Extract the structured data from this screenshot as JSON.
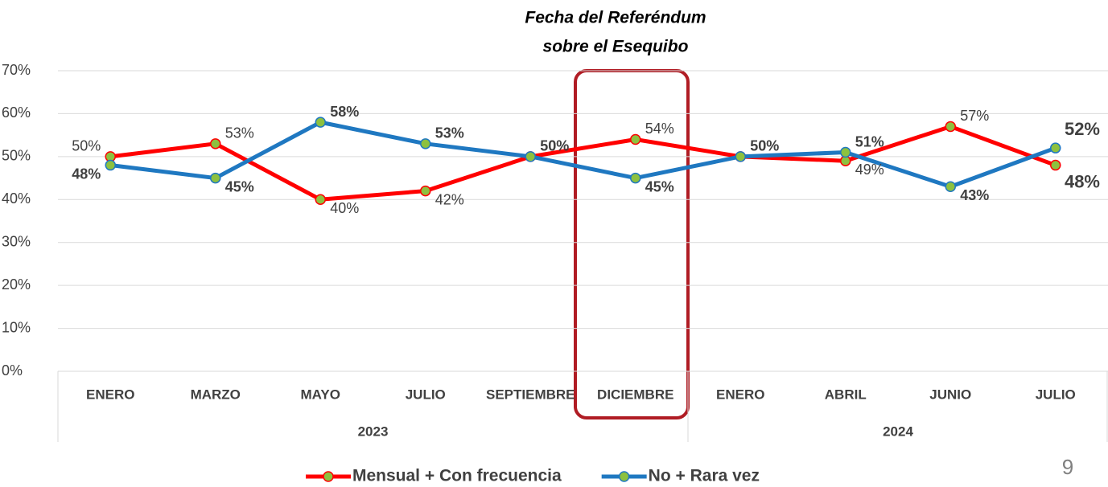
{
  "chart_data": {
    "type": "line",
    "annotation": [
      "Fecha del Referéndum",
      "sobre el Esequibo"
    ],
    "categories": [
      "ENERO",
      "MARZO",
      "MAYO",
      "JULIO",
      "SEPTIEMBRE",
      "DICIEMBRE",
      "ENERO",
      "ABRIL",
      "JUNIO",
      "JULIO"
    ],
    "groups": [
      {
        "name": "2023",
        "span": 6
      },
      {
        "name": "2024",
        "span": 4
      }
    ],
    "series": [
      {
        "name": "Mensual + Con frecuencia",
        "color": "#ff0000",
        "values": [
          50,
          53,
          40,
          42,
          50,
          54,
          50,
          49,
          57,
          48
        ],
        "value_labels": [
          "50%",
          "53%",
          "40%",
          "42%",
          "50%",
          "54%",
          "50%",
          "49%",
          "57%",
          "48%"
        ]
      },
      {
        "name": "No + Rara vez",
        "color": "#1f78c1",
        "values": [
          48,
          45,
          58,
          53,
          50,
          45,
          50,
          51,
          43,
          52
        ],
        "value_labels": [
          "48%",
          "45%",
          "58%",
          "53%",
          "50%",
          "45%",
          "50%",
          "51%",
          "43%",
          "52%"
        ]
      }
    ],
    "marker_color": "#8dc13f",
    "ylim": [
      0,
      70
    ],
    "yticks": [
      {
        "value": 0,
        "label": "0%"
      },
      {
        "value": 10,
        "label": "10%"
      },
      {
        "value": 20,
        "label": "20%"
      },
      {
        "value": 30,
        "label": "30%"
      },
      {
        "value": 40,
        "label": "40%"
      },
      {
        "value": 50,
        "label": "50%"
      },
      {
        "value": 60,
        "label": "60%"
      },
      {
        "value": 70,
        "label": "70%"
      }
    ],
    "grid": true,
    "legend": "bottom",
    "page_number": "9"
  }
}
